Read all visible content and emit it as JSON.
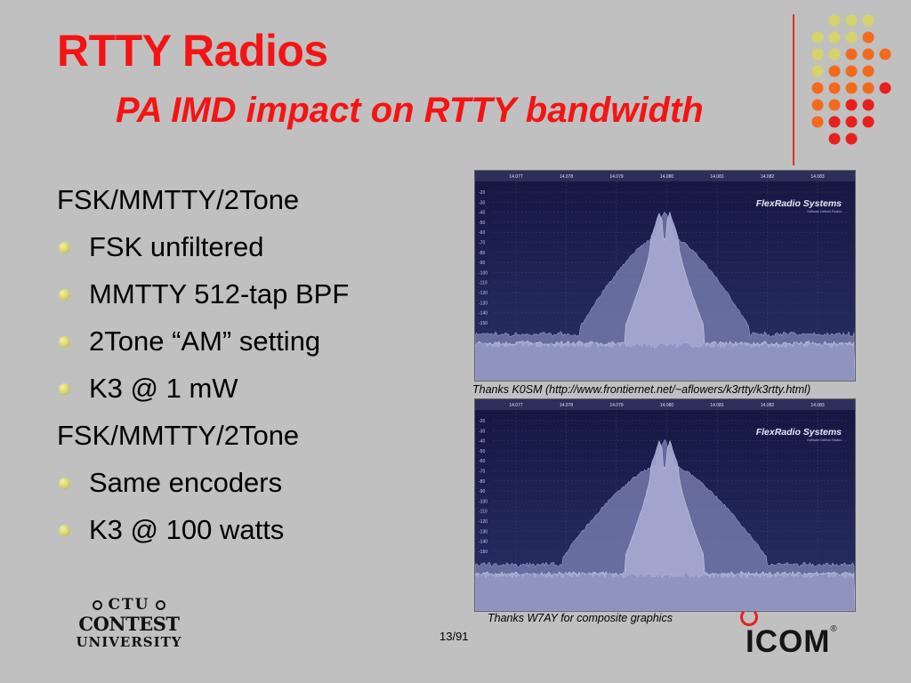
{
  "slide": {
    "title": "RTTY Radios",
    "subtitle": "PA IMD impact on RTTY bandwidth",
    "groups": [
      {
        "heading": "FSK/MMTTY/2Tone",
        "bullets": [
          "FSK unfiltered",
          "MMTTY 512-tap BPF",
          "2Tone “AM” setting",
          "K3 @ 1 mW"
        ]
      },
      {
        "heading": "FSK/MMTTY/2Tone",
        "bullets": [
          "Same encoders",
          "K3 @ 100 watts"
        ]
      }
    ],
    "page_number": "13/91"
  },
  "spectra": [
    {
      "freq_labels": [
        "14.077",
        "14.078",
        "14.079",
        "14.080",
        "14.081",
        "14.082",
        "14.083"
      ],
      "db_labels": [
        "-20",
        "-30",
        "-40",
        "-50",
        "-60",
        "-70",
        "-80",
        "-90",
        "-100",
        "-110",
        "-120",
        "-130",
        "-140",
        "-150"
      ],
      "brand": "FlexRadio Systems",
      "brand_tag": "Software Defined Radios",
      "caption": "Thanks K0SM (http://www.frontiernet.net/~aflowers/k3rtty/k3rtty.html)"
    },
    {
      "freq_labels": [
        "14.077",
        "14.078",
        "14.079",
        "14.080",
        "14.081",
        "14.082",
        "14.083"
      ],
      "db_labels": [
        "-20",
        "-30",
        "-40",
        "-50",
        "-60",
        "-70",
        "-80",
        "-90",
        "-100",
        "-110",
        "-120",
        "-130",
        "-140",
        "-150"
      ],
      "brand": "FlexRadio Systems",
      "brand_tag": "Software Defined Radios",
      "caption": "Thanks W7AY for composite graphics"
    }
  ],
  "logos": {
    "ctu_top": "CTU",
    "ctu_mid": "CONTEST",
    "ctu_bottom": "UNIVERSITY",
    "icom": "ICOM",
    "icom_reg": "®"
  },
  "colors": {
    "title_red": "#f41414",
    "background": "#c0c0c0",
    "bullet": "#d5d070",
    "spectrum_bg": "#191c48",
    "dot_yellow": "#d6d36a",
    "dot_orange": "#f46a1c",
    "dot_red": "#e8201c"
  }
}
